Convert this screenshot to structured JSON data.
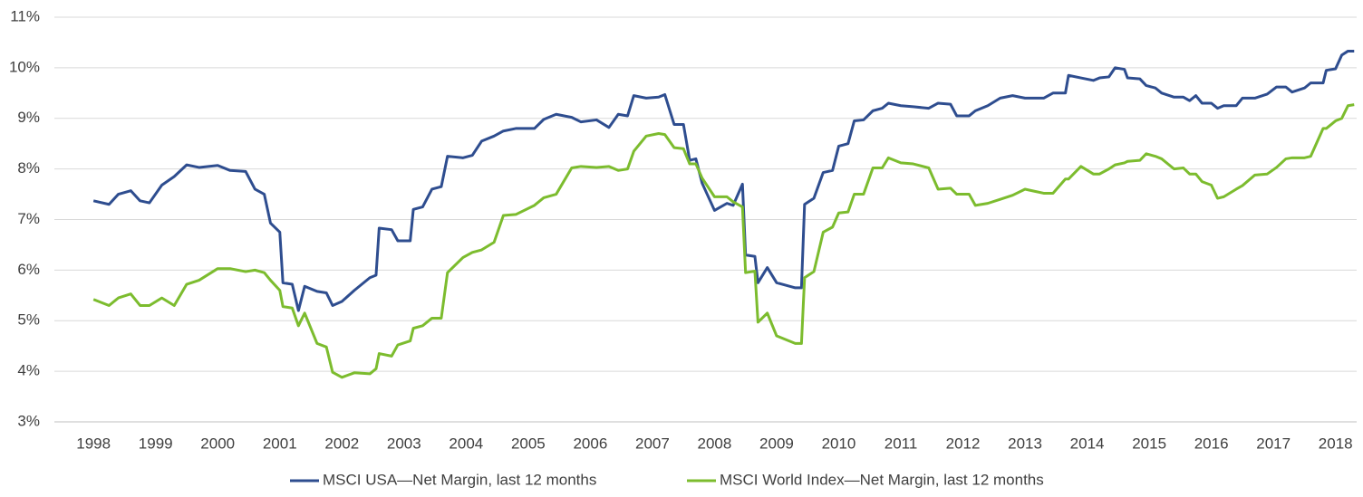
{
  "chart_data": {
    "type": "line",
    "x": [
      1998.0,
      1998.25,
      1998.4,
      1998.6,
      1998.75,
      1998.9,
      1999.1,
      1999.3,
      1999.5,
      1999.7,
      2000.0,
      2000.2,
      2000.45,
      2000.6,
      2000.75,
      2000.85,
      2001.0,
      2001.05,
      2001.2,
      2001.3,
      2001.4,
      2001.6,
      2001.75,
      2001.85,
      2002.0,
      2002.2,
      2002.45,
      2002.55,
      2002.6,
      2002.8,
      2002.9,
      2003.1,
      2003.15,
      2003.3,
      2003.45,
      2003.6,
      2003.7,
      2003.95,
      2004.1,
      2004.25,
      2004.45,
      2004.6,
      2004.8,
      2005.1,
      2005.25,
      2005.45,
      2005.7,
      2005.85,
      2006.1,
      2006.3,
      2006.45,
      2006.6,
      2006.7,
      2006.9,
      2007.1,
      2007.2,
      2007.35,
      2007.5,
      2007.6,
      2007.7,
      2007.8,
      2008.0,
      2008.2,
      2008.3,
      2008.45,
      2008.5,
      2008.65,
      2008.7,
      2008.85,
      2009.0,
      2009.3,
      2009.4,
      2009.45,
      2009.6,
      2009.75,
      2009.9,
      2010.0,
      2010.15,
      2010.25,
      2010.4,
      2010.55,
      2010.7,
      2010.8,
      2011.0,
      2011.2,
      2011.45,
      2011.6,
      2011.8,
      2011.9,
      2012.1,
      2012.2,
      2012.4,
      2012.6,
      2012.8,
      2013.0,
      2013.3,
      2013.45,
      2013.65,
      2013.7,
      2013.9,
      2014.1,
      2014.2,
      2014.35,
      2014.45,
      2014.6,
      2014.65,
      2014.85,
      2014.95,
      2015.1,
      2015.2,
      2015.4,
      2015.55,
      2015.65,
      2015.75,
      2015.85,
      2016.0,
      2016.1,
      2016.2,
      2016.4,
      2016.5,
      2016.7,
      2016.9,
      2017.05,
      2017.2,
      2017.3,
      2017.5,
      2017.6,
      2017.8,
      2017.85,
      2018.0,
      2018.1,
      2018.2,
      2018.3
    ],
    "series": [
      {
        "name": "MSCI USA—Net Margin, last 12 months",
        "color": "#2e4d8f",
        "values": [
          7.37,
          7.3,
          7.5,
          7.57,
          7.37,
          7.33,
          7.68,
          7.85,
          8.08,
          8.03,
          8.07,
          7.97,
          7.95,
          7.6,
          7.5,
          6.93,
          6.75,
          5.75,
          5.72,
          5.2,
          5.68,
          5.58,
          5.55,
          5.3,
          5.38,
          5.6,
          5.85,
          5.9,
          6.83,
          6.8,
          6.58,
          6.58,
          7.2,
          7.25,
          7.6,
          7.65,
          8.25,
          8.22,
          8.27,
          8.55,
          8.65,
          8.75,
          8.8,
          8.8,
          8.98,
          9.08,
          9.02,
          8.93,
          8.97,
          8.82,
          9.08,
          9.05,
          9.45,
          9.4,
          9.42,
          9.47,
          8.88,
          8.88,
          8.17,
          8.2,
          7.72,
          7.18,
          7.32,
          7.28,
          7.7,
          6.3,
          6.27,
          5.75,
          6.05,
          5.75,
          5.65,
          5.65,
          7.3,
          7.42,
          7.93,
          7.97,
          8.45,
          8.5,
          8.95,
          8.97,
          9.15,
          9.2,
          9.3,
          9.25,
          9.23,
          9.2,
          9.3,
          9.28,
          9.05,
          9.05,
          9.15,
          9.25,
          9.4,
          9.45,
          9.4,
          9.4,
          9.5,
          9.5,
          9.85,
          9.8,
          9.75,
          9.8,
          9.82,
          10.0,
          9.97,
          9.8,
          9.78,
          9.65,
          9.6,
          9.5,
          9.42,
          9.42,
          9.35,
          9.45,
          9.3,
          9.3,
          9.2,
          9.25,
          9.25,
          9.4,
          9.4,
          9.48,
          9.62,
          9.62,
          9.52,
          9.6,
          9.7,
          9.7,
          9.95,
          9.98,
          10.25,
          10.33,
          10.33
        ]
      },
      {
        "name": "MSCI World Index—Net Margin, last 12 months",
        "color": "#7cbc2e",
        "values": [
          5.42,
          5.3,
          5.45,
          5.53,
          5.3,
          5.3,
          5.45,
          5.3,
          5.72,
          5.8,
          6.03,
          6.03,
          5.97,
          6.0,
          5.95,
          5.8,
          5.6,
          5.28,
          5.25,
          4.9,
          5.15,
          4.55,
          4.48,
          3.98,
          3.88,
          3.97,
          3.95,
          4.05,
          4.35,
          4.3,
          4.52,
          4.6,
          4.85,
          4.9,
          5.05,
          5.05,
          5.95,
          6.25,
          6.35,
          6.4,
          6.55,
          7.08,
          7.1,
          7.28,
          7.43,
          7.5,
          8.02,
          8.05,
          8.03,
          8.05,
          7.97,
          8.0,
          8.35,
          8.65,
          8.7,
          8.68,
          8.42,
          8.4,
          8.1,
          8.1,
          7.82,
          7.45,
          7.45,
          7.35,
          7.25,
          5.95,
          5.98,
          4.97,
          5.15,
          4.7,
          4.55,
          4.55,
          5.85,
          5.97,
          6.75,
          6.85,
          7.13,
          7.15,
          7.5,
          7.5,
          8.02,
          8.02,
          8.22,
          8.12,
          8.1,
          8.02,
          7.6,
          7.62,
          7.5,
          7.5,
          7.28,
          7.32,
          7.4,
          7.48,
          7.6,
          7.52,
          7.52,
          7.8,
          7.8,
          8.05,
          7.9,
          7.9,
          8.0,
          8.08,
          8.12,
          8.15,
          8.17,
          8.3,
          8.25,
          8.2,
          8.0,
          8.02,
          7.9,
          7.9,
          7.75,
          7.68,
          7.42,
          7.45,
          7.6,
          7.67,
          7.88,
          7.9,
          8.03,
          8.2,
          8.22,
          8.22,
          8.25,
          8.8,
          8.8,
          8.95,
          9.0,
          9.25,
          9.27
        ]
      }
    ],
    "xlim": [
      1997.37,
      2018.34
    ],
    "xticks": [
      1998,
      1999,
      2000,
      2001,
      2002,
      2003,
      2004,
      2005,
      2006,
      2007,
      2008,
      2009,
      2010,
      2011,
      2012,
      2013,
      2014,
      2015,
      2016,
      2017,
      2018
    ],
    "ylim": [
      3,
      11
    ],
    "yticks": [
      {
        "value": 3,
        "label": "3%"
      },
      {
        "value": 4,
        "label": "4%"
      },
      {
        "value": 5,
        "label": "5%"
      },
      {
        "value": 6,
        "label": "6%"
      },
      {
        "value": 7,
        "label": "7%"
      },
      {
        "value": 8,
        "label": "8%"
      },
      {
        "value": 9,
        "label": "9%"
      },
      {
        "value": 10,
        "label": "10%"
      },
      {
        "value": 11,
        "label": "11%"
      }
    ],
    "grid": true,
    "legend": "bottom"
  }
}
